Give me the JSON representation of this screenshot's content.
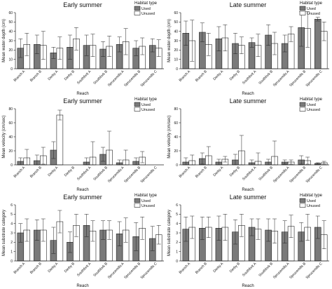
{
  "chart_data": [
    {
      "type": "bar",
      "title": "Early summer",
      "xlabel": "Reach",
      "ylabel": "Mean water depth (cm)",
      "ylim": [
        0,
        60
      ],
      "yticks": [
        0,
        10,
        20,
        30,
        40,
        50,
        60
      ],
      "categories": [
        "Branch A",
        "Branch B",
        "Derby A",
        "Derby B",
        "Southfork A",
        "Southfork B",
        "Sprucemills A",
        "Sprucemills B",
        "Sprucemills C"
      ],
      "legend_title": "Habitat type",
      "legend_position": "top-right",
      "series": [
        {
          "name": "Used",
          "color": "#7a7a7a",
          "values": [
            22,
            26,
            17,
            23,
            25,
            21,
            26,
            22,
            25
          ],
          "errors": [
            10,
            10,
            6,
            13,
            11,
            8,
            8,
            8,
            7
          ]
        },
        {
          "name": "Unused",
          "color": "#ffffff",
          "values": [
            26,
            25,
            22,
            32,
            25,
            24,
            29,
            24,
            22
          ],
          "errors": [
            12,
            15,
            12,
            12,
            12,
            11,
            14,
            9,
            9
          ]
        }
      ]
    },
    {
      "type": "bar",
      "title": "Late summer",
      "xlabel": "Reach",
      "ylabel": "Mean water depth (cm)",
      "ylim": [
        0,
        60
      ],
      "yticks": [
        0,
        10,
        20,
        30,
        40,
        50,
        60
      ],
      "categories": [
        "Branch A",
        "Branch B",
        "Derby A",
        "Derby B",
        "Southfork A",
        "Southfork B",
        "Sprucemills A",
        "Sprucemills B",
        "Sprucemills C"
      ],
      "legend_title": "Habitat type",
      "legend_position": "top-right",
      "series": [
        {
          "name": "Used",
          "color": "#7a7a7a",
          "values": [
            38,
            39,
            32,
            27,
            28,
            36,
            27,
            44,
            53
          ],
          "errors": [
            13,
            10,
            13,
            11,
            5,
            11,
            9,
            20,
            2
          ]
        },
        {
          "name": "Unused",
          "color": "#ffffff",
          "values": [
            30,
            26,
            33,
            25,
            25,
            27,
            37,
            43,
            40
          ],
          "errors": [
            22,
            12,
            14,
            9,
            12,
            12,
            8,
            20,
            10
          ]
        }
      ]
    },
    {
      "type": "bar",
      "title": "Early summer",
      "xlabel": "Reach",
      "ylabel": "Mean velocity (cm/sec)",
      "ylim": [
        0,
        80
      ],
      "yticks": [
        0,
        20,
        40,
        60,
        80
      ],
      "categories": [
        "Branch A",
        "Branch B",
        "Derby A",
        "Derby B",
        "Southfork A",
        "Southfork B",
        "Sprucemills A",
        "Sprucemills B",
        "Sprucemills C"
      ],
      "legend_title": "Habitat type",
      "legend_position": "top-right",
      "series": [
        {
          "name": "Used",
          "color": "#7a7a7a",
          "values": [
            5,
            6,
            21,
            0,
            4,
            15,
            3,
            5,
            0
          ],
          "errors": [
            5,
            8,
            12,
            0,
            6,
            10,
            4,
            5,
            0
          ]
        },
        {
          "name": "Unused",
          "color": "#ffffff",
          "values": [
            10,
            13,
            71,
            0,
            11,
            21,
            7,
            11,
            0
          ],
          "errors": [
            12,
            12,
            7,
            0,
            22,
            27,
            14,
            8,
            0
          ]
        }
      ]
    },
    {
      "type": "bar",
      "title": "Late summer",
      "xlabel": "Reach",
      "ylabel": "Mean velocity (cm/sec)",
      "ylim": [
        0,
        80
      ],
      "yticks": [
        0,
        20,
        40,
        60,
        80
      ],
      "categories": [
        "Branch A",
        "Branch B",
        "Derby A",
        "Derby B",
        "Southfork A",
        "Southfork B",
        "Sprucemills A",
        "Sprucemills B",
        "Sprucemills C"
      ],
      "legend_title": "Habitat type",
      "legend_position": "top-right",
      "series": [
        {
          "name": "Used",
          "color": "#7a7a7a",
          "values": [
            4,
            9,
            4,
            7,
            3,
            4,
            4,
            7,
            2
          ],
          "errors": [
            6,
            8,
            4,
            8,
            4,
            4,
            3,
            6,
            1
          ]
        },
        {
          "name": "Unused",
          "color": "#ffffff",
          "values": [
            6,
            13,
            8,
            20,
            5,
            12,
            4,
            6,
            3
          ],
          "errors": [
            8,
            13,
            4,
            22,
            12,
            22,
            3,
            5,
            2
          ]
        }
      ]
    },
    {
      "type": "bar",
      "title": "Early summer",
      "xlabel": "Reach",
      "ylabel": "Mean substrate category",
      "ylim": [
        0,
        6
      ],
      "yticks": [
        0,
        1,
        2,
        3,
        4,
        5,
        6
      ],
      "categories": [
        "Branch A",
        "Branch B",
        "Derby A",
        "Derby B",
        "Southfork A",
        "Southfork B",
        "Sprucemills A",
        "Sprucemills B",
        "Sprucemills C"
      ],
      "legend_title": "Habitat type",
      "legend_position": "top-right",
      "series": [
        {
          "name": "Used",
          "color": "#7a7a7a",
          "values": [
            3.0,
            3.3,
            2.2,
            2.0,
            3.8,
            3.3,
            2.9,
            2.6,
            2.4
          ],
          "errors": [
            1.0,
            1.1,
            1.4,
            1.1,
            1.2,
            1.0,
            1.3,
            1.5,
            1.3
          ]
        },
        {
          "name": "Unused",
          "color": "#ffffff",
          "values": [
            3.3,
            3.3,
            4.2,
            3.8,
            3.2,
            3.3,
            3.3,
            3.5,
            2.8
          ],
          "errors": [
            1.2,
            1.2,
            1.2,
            1.2,
            1.1,
            1.0,
            1.3,
            1.2,
            1.0
          ]
        }
      ]
    },
    {
      "type": "bar",
      "title": "Late summer",
      "xlabel": "Reach",
      "ylabel": "Mean substrate category",
      "ylim": [
        0,
        6
      ],
      "yticks": [
        0,
        1,
        2,
        3,
        4,
        5,
        6
      ],
      "categories": [
        "Branch A",
        "Branch B",
        "Derby A",
        "Derby B",
        "Southfork A",
        "Southfork B",
        "Sprucemills A",
        "Sprucemills B",
        "Sprucemills C"
      ],
      "legend_title": "Habitat type",
      "legend_position": "top-right",
      "series": [
        {
          "name": "Used",
          "color": "#7a7a7a",
          "values": [
            3.4,
            3.5,
            3.5,
            3.1,
            3.6,
            3.3,
            3.1,
            3.1,
            3.6
          ],
          "errors": [
            1.3,
            1.2,
            1.3,
            1.3,
            0.9,
            1.2,
            1.2,
            1.0,
            1.2
          ]
        },
        {
          "name": "Unused",
          "color": "#ffffff",
          "values": [
            3.6,
            3.6,
            3.6,
            3.8,
            3.4,
            3.2,
            3.7,
            3.6,
            2.8
          ],
          "errors": [
            1.2,
            1.1,
            1.4,
            1.2,
            1.1,
            1.3,
            1.2,
            1.4,
            1.5
          ]
        }
      ]
    }
  ]
}
